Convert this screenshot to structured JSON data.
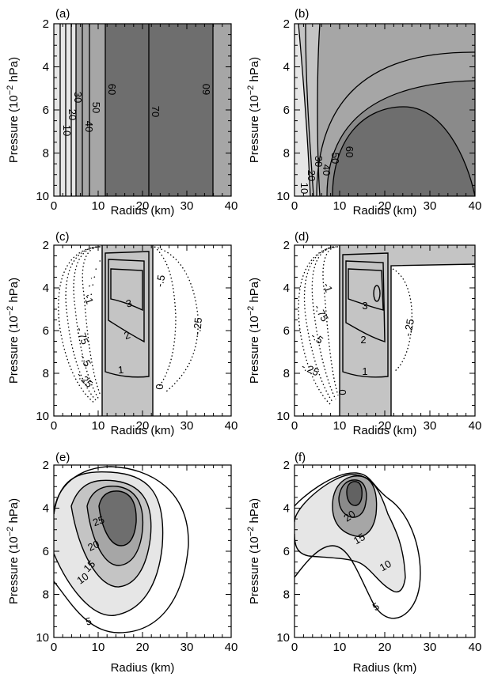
{
  "figure": {
    "panel_labels": [
      "(a)",
      "(b)",
      "(c)",
      "(d)",
      "(e)",
      "(f)"
    ],
    "xlabel": "Radius (km)",
    "ylabel_main": "Pressure (10",
    "ylabel_exp": "−2",
    "ylabel_unit": " hPa)"
  },
  "chart_data": [
    {
      "panel": "(a)",
      "type": "contour",
      "xlabel": "Radius (km)",
      "ylabel": "Pressure (10^-2 hPa)",
      "xlim": [
        0,
        40
      ],
      "ylim": [
        10,
        2
      ],
      "xticks": [
        0,
        10,
        20,
        30,
        40
      ],
      "yticks": [
        2,
        4,
        6,
        8,
        10
      ],
      "contour_labels": [
        10,
        20,
        30,
        40,
        50,
        60,
        70,
        60
      ],
      "fill_levels": [
        "light",
        "medium",
        "dark"
      ]
    },
    {
      "panel": "(b)",
      "type": "contour",
      "xlabel": "Radius (km)",
      "ylabel": "Pressure (10^-2 hPa)",
      "xlim": [
        0,
        40
      ],
      "ylim": [
        10,
        2
      ],
      "xticks": [
        0,
        10,
        20,
        30,
        40
      ],
      "yticks": [
        2,
        4,
        6,
        8,
        10
      ],
      "contour_labels": [
        10,
        20,
        30,
        40,
        50,
        60
      ]
    },
    {
      "panel": "(c)",
      "type": "contour",
      "xlabel": "Radius (km)",
      "ylabel": "Pressure (10^-2 hPa)",
      "xlim": [
        0,
        40
      ],
      "ylim": [
        10,
        2
      ],
      "xticks": [
        0,
        10,
        20,
        30,
        40
      ],
      "yticks": [
        2,
        4,
        6,
        8,
        10
      ],
      "positive_labels": [
        "1",
        "2",
        "3"
      ],
      "zero_label": "0",
      "negative_labels": [
        "-1",
        "-.75",
        "-.5",
        "-.25",
        "-.5",
        "-.25"
      ]
    },
    {
      "panel": "(d)",
      "type": "contour",
      "xlabel": "Radius (km)",
      "ylabel": "Pressure (10^-2 hPa)",
      "xlim": [
        0,
        40
      ],
      "ylim": [
        10,
        2
      ],
      "xticks": [
        0,
        10,
        20,
        30,
        40
      ],
      "yticks": [
        2,
        4,
        6,
        8,
        10
      ],
      "positive_labels": [
        "1",
        "2",
        "3"
      ],
      "zero_label": "0",
      "negative_labels": [
        "-1",
        "-.75",
        "-.5",
        "-.25",
        "-.25"
      ]
    },
    {
      "panel": "(e)",
      "type": "contour",
      "xlabel": "Radius (km)",
      "ylabel": "Pressure (10^-2 hPa)",
      "xlim": [
        0,
        40
      ],
      "ylim": [
        10,
        2
      ],
      "xticks": [
        0,
        10,
        20,
        30,
        40
      ],
      "yticks": [
        2,
        4,
        6,
        8,
        10
      ],
      "contour_labels": [
        "5",
        "10",
        "15",
        "20",
        "25"
      ]
    },
    {
      "panel": "(f)",
      "type": "contour",
      "xlabel": "Radius (km)",
      "ylabel": "Pressure (10^-2 hPa)",
      "xlim": [
        0,
        40
      ],
      "ylim": [
        10,
        2
      ],
      "xticks": [
        0,
        10,
        20,
        30,
        40
      ],
      "yticks": [
        2,
        4,
        6,
        8,
        10
      ],
      "contour_labels": [
        "5",
        "10",
        "15",
        "20"
      ]
    }
  ],
  "colors": {
    "light": "#e6e6e6",
    "medium": "#a6a6a6",
    "dark": "#6e6e6e",
    "darker": "#626262",
    "band": "#c4c4c4"
  }
}
